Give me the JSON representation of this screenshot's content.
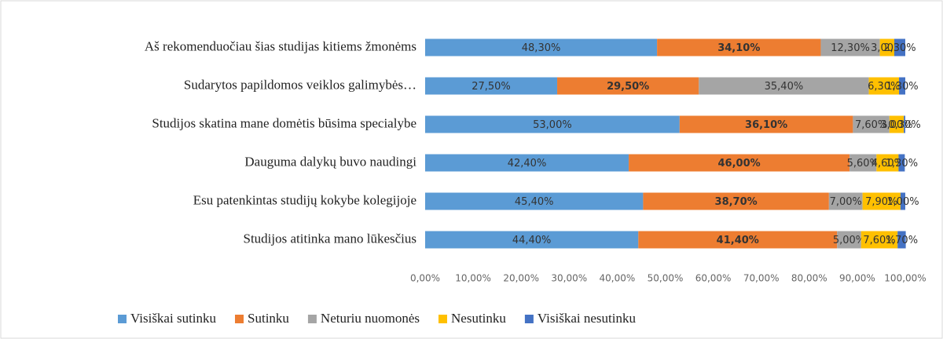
{
  "chart_data": {
    "type": "stacked_bar_horizontal",
    "categories": [
      "Aš rekomenduočiau šias studijas kitiems žmonėms",
      "Sudarytos papildomos veiklos galimybės…",
      "Studijos skatina mane domėtis būsima specialybe",
      "Dauguma dalykų buvo naudingi",
      "Esu patenkintas studijų kokybe kolegijoje",
      "Studijos atitinka mano lūkesčius"
    ],
    "series": [
      {
        "name": "Visiškai sutinku",
        "color": "#5b9bd5",
        "values": [
          48.3,
          27.5,
          53.0,
          42.4,
          45.4,
          44.4
        ],
        "value_labels": [
          "48,30%",
          "27,50%",
          "53,00%",
          "42,40%",
          "45,40%",
          "44,40%"
        ]
      },
      {
        "name": "Sutinku",
        "color": "#ed7d31",
        "values": [
          34.1,
          29.5,
          36.1,
          46.0,
          38.7,
          41.4
        ],
        "value_labels": [
          "34,10%",
          "29,50%",
          "36,10%",
          "46,00%",
          "38,70%",
          "41,40%"
        ]
      },
      {
        "name": "Neturiu nuomonės",
        "color": "#a5a5a5",
        "values": [
          12.3,
          35.4,
          7.6,
          5.6,
          7.0,
          5.0
        ],
        "value_labels": [
          "12,30%",
          "35,40%",
          "7,60%",
          "5,60%",
          "7,00%",
          "5,00%"
        ]
      },
      {
        "name": "Nesutinku",
        "color": "#ffc000",
        "values": [
          3.0,
          6.3,
          3.0,
          4.6,
          7.9,
          7.6
        ],
        "value_labels": [
          "3,00%",
          "6,30%",
          "3,00%",
          "4,60%",
          "7,90%",
          "7,60%"
        ]
      },
      {
        "name": "Visiškai nesutinku",
        "color": "#4472c4",
        "values": [
          2.3,
          1.3,
          0.3,
          1.3,
          1.0,
          1.7
        ],
        "value_labels": [
          "2,30%",
          "1,30%",
          "0,30%",
          "1,30%",
          "1,00%",
          "1,70%"
        ]
      }
    ],
    "xlim": [
      0,
      100
    ],
    "xticks": [
      {
        "value": 0,
        "label": "0,00%"
      },
      {
        "value": 10,
        "label": "10,00%"
      },
      {
        "value": 20,
        "label": "20,00%"
      },
      {
        "value": 30,
        "label": "30,00%"
      },
      {
        "value": 40,
        "label": "40,00%"
      },
      {
        "value": 50,
        "label": "50,00%"
      },
      {
        "value": 60,
        "label": "60,00%"
      },
      {
        "value": 70,
        "label": "70,00%"
      },
      {
        "value": 80,
        "label": "80,00%"
      },
      {
        "value": 90,
        "label": "90,00%"
      },
      {
        "value": 100,
        "label": "100,00%"
      }
    ],
    "legend": "bottom"
  }
}
